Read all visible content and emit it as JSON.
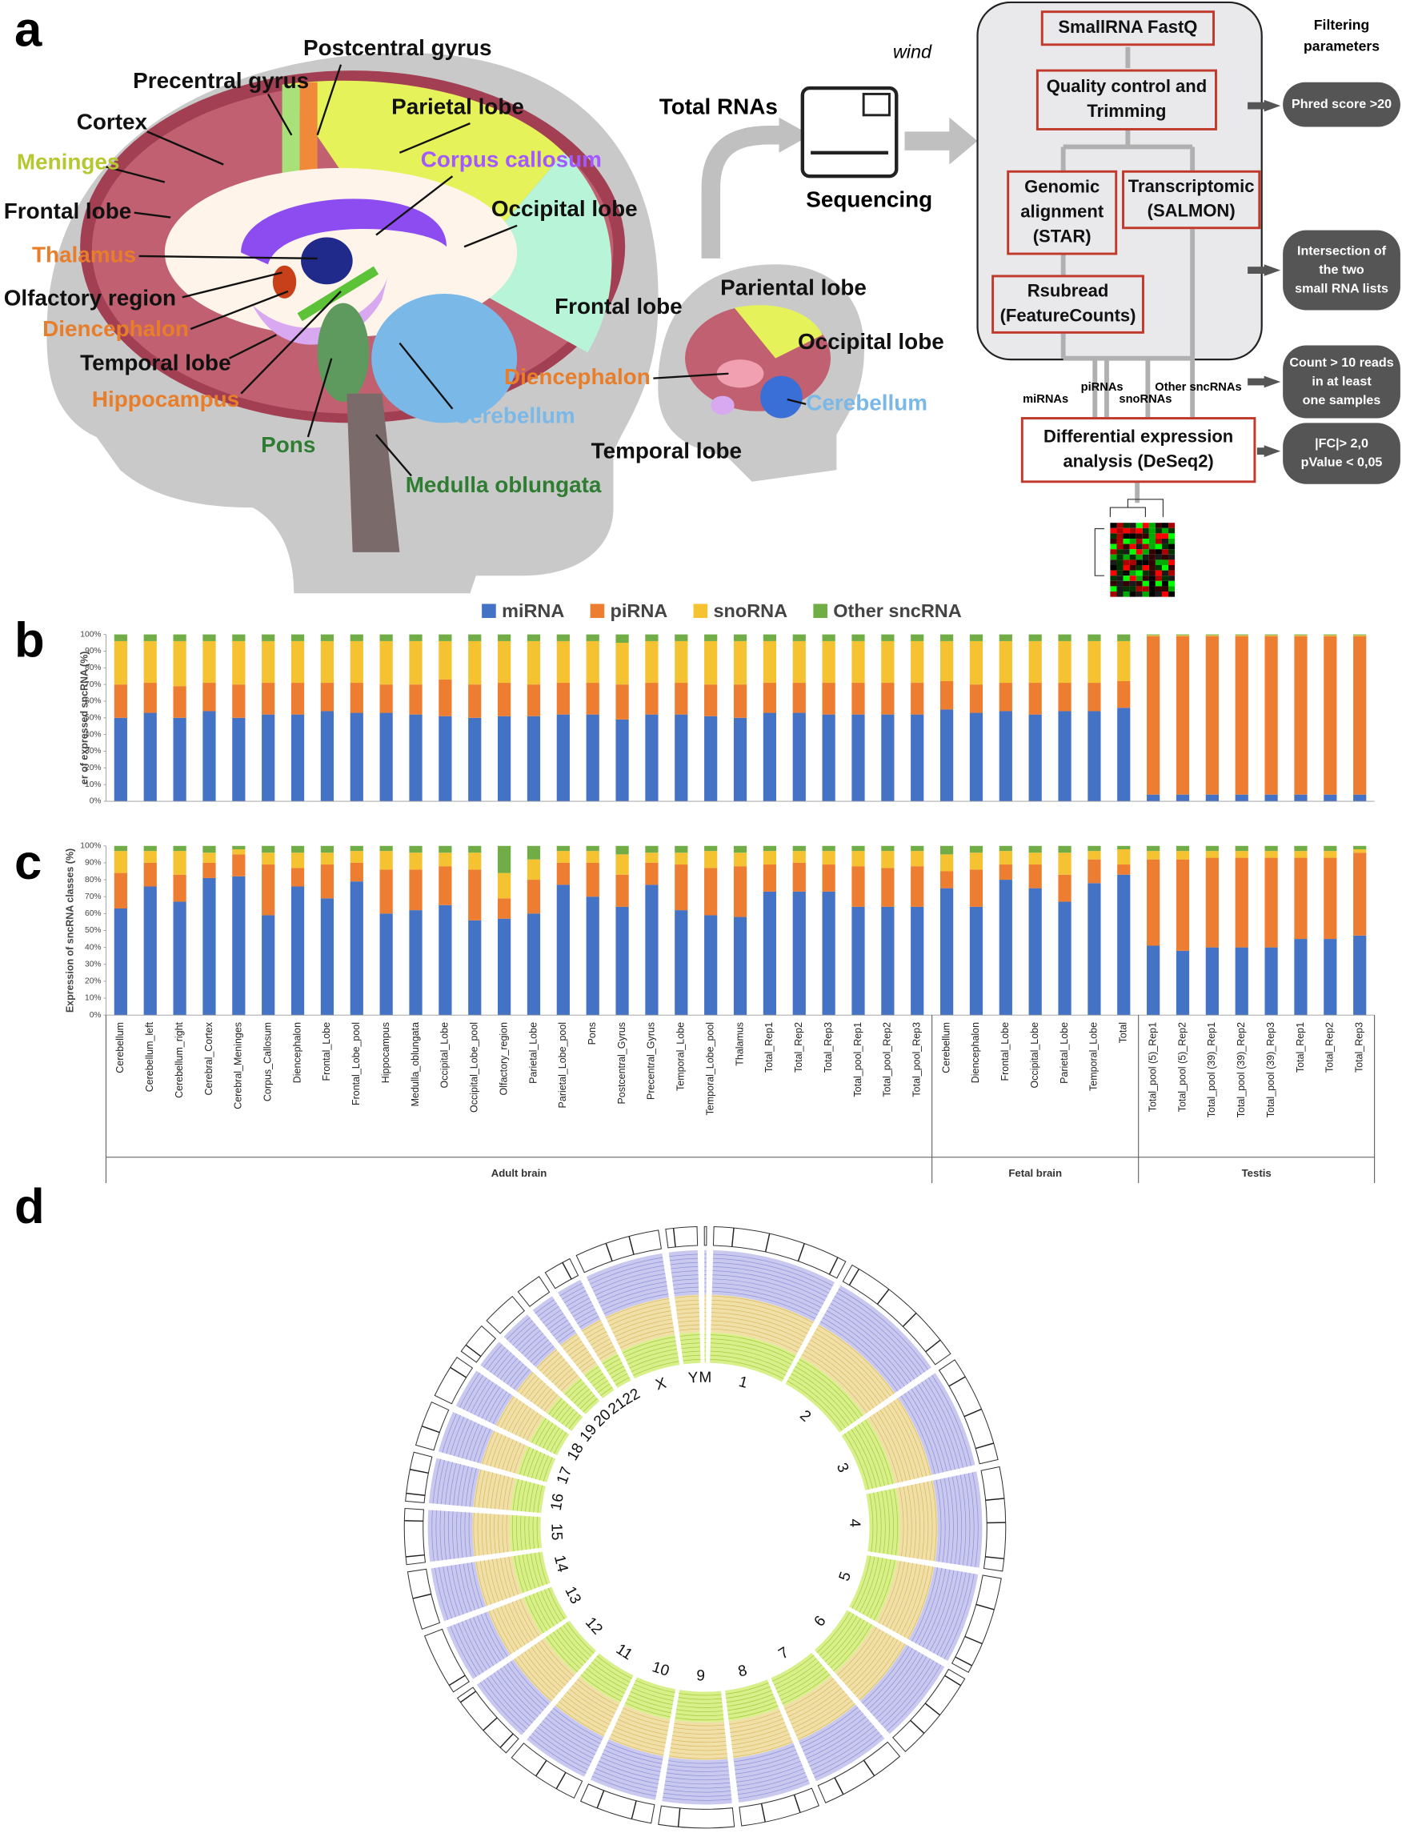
{
  "panel_a": {
    "label": "a",
    "brain_labels": [
      "Postcentral gyrus",
      "Precentral gyrus",
      "Parietal lobe",
      "Cortex",
      "Corpus callosum",
      "Meninges",
      "Occipital lobe",
      "Frontal lobe",
      "Thalamus",
      "Olfactory region",
      "Diencephalon",
      "Temporal lobe",
      "Hippocampus",
      "Cerebellum",
      "Pons",
      "Medulla oblungata"
    ],
    "small_brain_labels": [
      "Pariental lobe",
      "Frontal lobe",
      "Occipital lobe",
      "Diencephalon",
      "Cerebellum",
      "Temporal lobe"
    ],
    "total_rnas": "Total RNAs",
    "sequencing": "Sequencing",
    "logo": "wind",
    "workflow": {
      "steps": [
        [
          "SmallRNA FastQ"
        ],
        [
          "Quality control and",
          "Trimming"
        ],
        [
          "Genomic",
          "alignment",
          "(STAR)"
        ],
        [
          "Transcriptomic",
          "(SALMON)"
        ],
        [
          "Rsubread",
          "(FeatureCounts)"
        ],
        [
          "Differential expression",
          "analysis (DeSeq2)"
        ]
      ],
      "rna_classes": [
        "miRNAs",
        "piRNAs",
        "snoRNAs",
        "Other sncRNAs"
      ],
      "filtering_title": [
        "Filtering",
        "parameters"
      ],
      "filters": [
        [
          "Phred score >20"
        ],
        [
          "Intersection of",
          "the two",
          "small RNA lists"
        ],
        [
          "Count > 10 reads",
          "in at least",
          "one samples"
        ],
        [
          "|FC|> 2,0",
          "pValue < 0,05"
        ]
      ]
    }
  },
  "chart_data": [
    {
      "type": "bar",
      "stacked": true,
      "panel_label": "b",
      "y_label": "er of expressed sncRNA (%)",
      "legend": "top",
      "ylim": [
        0,
        100
      ],
      "yticks": [
        {
          "value": 0,
          "label": "0%"
        },
        {
          "value": 10,
          "label": "10%"
        },
        {
          "value": 20,
          "label": "20%"
        },
        {
          "value": 30,
          "label": "30%"
        },
        {
          "value": 40,
          "label": "40%"
        },
        {
          "value": 50,
          "label": "50%"
        },
        {
          "value": 60,
          "label": "60%"
        },
        {
          "value": 70,
          "label": "70%"
        },
        {
          "value": 80,
          "label": "80%"
        },
        {
          "value": 90,
          "label": "90%"
        },
        {
          "value": 100,
          "label": "100%"
        }
      ],
      "series": [
        {
          "name": "miRNA",
          "color": "#4472c4",
          "values": [
            50,
            53,
            50,
            54,
            50,
            52,
            52,
            54,
            53,
            53,
            52,
            51,
            50,
            51,
            51,
            52,
            52,
            49,
            52,
            52,
            51,
            50,
            53,
            53,
            52,
            52,
            52,
            52,
            55,
            53,
            54,
            52,
            54,
            54,
            56,
            4,
            4,
            4,
            4,
            4,
            4,
            4,
            4
          ]
        },
        {
          "name": "piRNA",
          "color": "#ed7d31",
          "values": [
            20,
            18,
            19,
            17,
            20,
            19,
            19,
            17,
            18,
            17,
            18,
            22,
            20,
            20,
            19,
            19,
            19,
            21,
            19,
            19,
            19,
            20,
            18,
            18,
            19,
            19,
            19,
            19,
            17,
            17,
            17,
            19,
            17,
            17,
            16,
            95,
            95,
            95,
            95,
            95,
            95,
            95,
            95
          ]
        },
        {
          "name": "snoRNA",
          "color": "#f5c231",
          "values": [
            26,
            25,
            27,
            25,
            26,
            25,
            25,
            25,
            25,
            26,
            26,
            23,
            26,
            25,
            26,
            25,
            25,
            25,
            25,
            25,
            26,
            26,
            25,
            25,
            25,
            25,
            25,
            25,
            24,
            26,
            25,
            25,
            25,
            25,
            24,
            0.5,
            0.5,
            0.5,
            0.5,
            0.5,
            0.5,
            0.5,
            0.5
          ]
        },
        {
          "name": "Other sncRNA",
          "color": "#70ad47",
          "values": [
            4,
            4,
            4,
            4,
            4,
            4,
            4,
            4,
            4,
            4,
            4,
            4,
            4,
            4,
            4,
            4,
            4,
            5,
            4,
            4,
            4,
            4,
            4,
            4,
            4,
            4,
            4,
            4,
            4,
            4,
            4,
            4,
            4,
            4,
            4,
            0.5,
            0.5,
            0.5,
            0.5,
            0.5,
            0.5,
            0.5,
            0.5
          ]
        }
      ]
    },
    {
      "type": "bar",
      "stacked": true,
      "panel_label": "c",
      "y_label": "Expression of  sncRNA classes (%)",
      "ylim": [
        0,
        100
      ],
      "yticks": [
        {
          "value": 0,
          "label": "0%"
        },
        {
          "value": 10,
          "label": "10%"
        },
        {
          "value": 20,
          "label": "20%"
        },
        {
          "value": 30,
          "label": "30%"
        },
        {
          "value": 40,
          "label": "40%"
        },
        {
          "value": 50,
          "label": "50%"
        },
        {
          "value": 60,
          "label": "60%"
        },
        {
          "value": 70,
          "label": "70%"
        },
        {
          "value": 80,
          "label": "80%"
        },
        {
          "value": 90,
          "label": "90%"
        },
        {
          "value": 100,
          "label": "100%"
        }
      ],
      "groups": [
        {
          "name": "Adult brain",
          "categories": [
            "Cerebellum",
            "Cerebellum_left",
            "Cerebellum_right",
            "Cerebral_Cortex",
            "Cerebral_Meninges",
            "Corpus_Callosum",
            "Diencephalon",
            "Frontal_Lobe",
            "Frontal_Lobe_pool",
            "Hippocampus",
            "Medulla_oblungata",
            "Occipital_Lobe",
            "Occipital_Lobe_pool",
            "Olfactory_region",
            "Parietal_Lobe",
            "Parietal_Lobe_pool",
            "Pons",
            "Postcentral_Gyrus",
            "Precentral_Gyrus",
            "Temporal_Lobe",
            "Temporal_Lobe_pool",
            "Thalamus",
            "Total_Rep1",
            "Total_Rep2",
            "Total_Rep3",
            "Total_pool_Rep1",
            "Total_pool_Rep2",
            "Total_pool_Rep3"
          ]
        },
        {
          "name": "Fetal brain",
          "categories": [
            "Cerebellum",
            "Diencephalon",
            "Frontal_Lobe",
            "Occipital_Lobe",
            "Parietal_Lobe",
            "Temporal_Lobe",
            "Total"
          ]
        },
        {
          "name": "Testis",
          "categories": [
            "Total_pool (5)_Rep1",
            "Total_pool (5)_Rep2",
            "Total_pool (39)_Rep1",
            "Total_pool (39)_Rep2",
            "Total_pool (39)_Rep3",
            "Total_Rep1",
            "Total_Rep2",
            "Total_Rep3"
          ]
        }
      ],
      "series": [
        {
          "color": "#4472c4",
          "values": [
            63,
            76,
            67,
            81,
            82,
            59,
            76,
            69,
            79,
            60,
            62,
            65,
            56,
            57,
            60,
            77,
            70,
            64,
            77,
            62,
            59,
            58,
            73,
            73,
            73,
            64,
            64,
            64,
            75,
            64,
            80,
            75,
            67,
            78,
            83,
            41,
            38,
            40,
            40,
            40,
            45,
            45,
            47
          ]
        },
        {
          "color": "#ed7d31",
          "values": [
            21,
            14,
            16,
            9,
            13,
            30,
            11,
            20,
            11,
            26,
            24,
            23,
            30,
            12,
            20,
            13,
            20,
            19,
            13,
            27,
            28,
            30,
            16,
            17,
            16,
            24,
            23,
            24,
            10,
            22,
            9,
            14,
            16,
            14,
            6,
            51,
            54,
            53,
            53,
            53,
            48,
            48,
            49
          ]
        },
        {
          "color": "#f5c231",
          "values": [
            13,
            7,
            14,
            6,
            3,
            7,
            9,
            7,
            7,
            11,
            10,
            8,
            10,
            15,
            12,
            7,
            7,
            12,
            6,
            7,
            10,
            8,
            8,
            7,
            8,
            9,
            10,
            9,
            10,
            10,
            8,
            7,
            13,
            5,
            9,
            5,
            5,
            4,
            4,
            4,
            4,
            4,
            2
          ]
        },
        {
          "color": "#70ad47",
          "values": [
            3,
            3,
            3,
            4,
            2,
            4,
            4,
            4,
            3,
            3,
            4,
            4,
            4,
            16,
            8,
            3,
            3,
            5,
            4,
            4,
            3,
            4,
            3,
            3,
            3,
            3,
            3,
            3,
            5,
            4,
            3,
            4,
            4,
            3,
            2,
            3,
            3,
            3,
            3,
            3,
            3,
            3,
            2
          ]
        }
      ]
    }
  ],
  "panel_d": {
    "label": "d",
    "chromosomes": [
      "1",
      "2",
      "3",
      "4",
      "5",
      "6",
      "7",
      "8",
      "9",
      "10",
      "11",
      "12",
      "13",
      "14",
      "15",
      "16",
      "17",
      "18",
      "19",
      "20",
      "21",
      "22",
      "X",
      "Y",
      "M"
    ]
  }
}
